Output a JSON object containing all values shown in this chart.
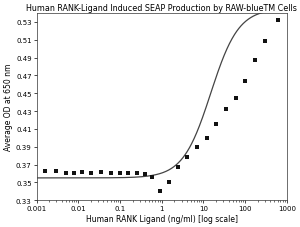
{
  "title": "Human RANK-Ligand Induced SEAP Production by RAW-blueTM Cells",
  "xlabel": "Human RANK Ligand (ng/ml) [log scale]",
  "ylabel": "Average OD at 650 nm",
  "xlim": [
    0.001,
    1000
  ],
  "ylim": [
    0.33,
    0.54
  ],
  "yticks": [
    0.33,
    0.35,
    0.37,
    0.39,
    0.41,
    0.43,
    0.45,
    0.47,
    0.49,
    0.51,
    0.53
  ],
  "ytick_labels": [
    "0.33",
    "0.35",
    "0.37",
    "0.39",
    "0.41",
    "0.43",
    "0.45",
    "0.47",
    "0.49",
    "0.51",
    "0.53"
  ],
  "xtick_positions": [
    0.001,
    0.01,
    0.1,
    1,
    10,
    100,
    1000
  ],
  "xtick_labels": [
    "0.001",
    "0.01",
    "0.1",
    "1",
    "10",
    "100",
    "1000"
  ],
  "data_x": [
    0.0016,
    0.003,
    0.005,
    0.008,
    0.012,
    0.02,
    0.035,
    0.06,
    0.1,
    0.16,
    0.25,
    0.4,
    0.6,
    0.9,
    1.5,
    2.5,
    4,
    7,
    12,
    20,
    35,
    60,
    100,
    170,
    300,
    600
  ],
  "data_y": [
    0.363,
    0.363,
    0.36,
    0.361,
    0.362,
    0.361,
    0.362,
    0.361,
    0.36,
    0.361,
    0.36,
    0.359,
    0.356,
    0.34,
    0.35,
    0.367,
    0.379,
    0.39,
    0.4,
    0.415,
    0.432,
    0.445,
    0.464,
    0.487,
    0.508,
    0.532
  ],
  "background_color": "#ffffff",
  "line_color": "#444444",
  "marker_color": "#111111",
  "title_fontsize": 5.8,
  "axis_fontsize": 5.5,
  "tick_fontsize": 5.0,
  "figsize": [
    3.0,
    2.28
  ],
  "dpi": 100
}
